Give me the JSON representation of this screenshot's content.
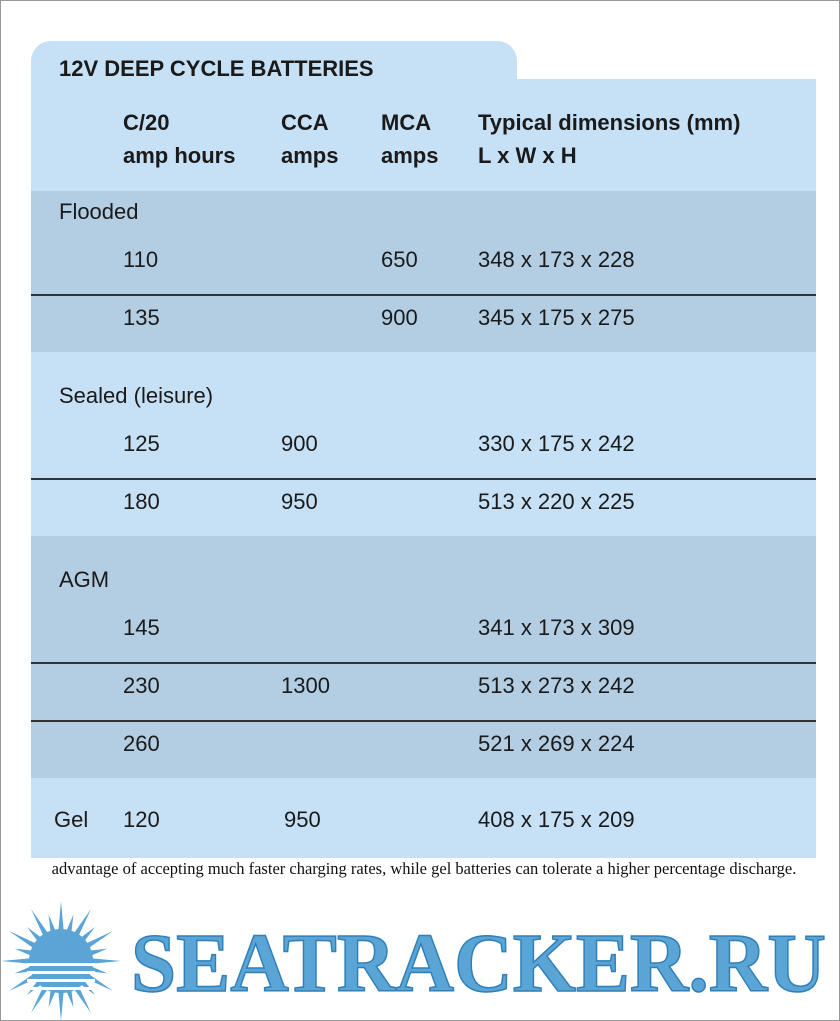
{
  "table": {
    "title": "12V DEEP CYCLE BATTERIES",
    "headers": [
      [
        "C/20",
        "amp hours"
      ],
      [
        "CCA",
        "amps"
      ],
      [
        "MCA",
        "amps"
      ],
      [
        "Typical dimensions (mm)",
        "L x W x H"
      ]
    ],
    "groups": [
      {
        "name": "Flooded",
        "rows": [
          {
            "ah": 110,
            "mca": 650,
            "dims": "348 x 173 x 228"
          },
          {
            "ah": 135,
            "mca": 900,
            "dims": "345 x 175 x 275"
          }
        ]
      },
      {
        "name": "Sealed (leisure)",
        "rows": [
          {
            "ah": 125,
            "cca": 900,
            "dims": "330 x 175 x 242"
          },
          {
            "ah": 180,
            "cca": 950,
            "dims": "513 x 220 x 225"
          }
        ]
      },
      {
        "name": "AGM",
        "rows": [
          {
            "ah": 145,
            "dims": "341 x 173 x 309"
          },
          {
            "ah": 230,
            "cca": 1300,
            "dims": "513 x 273 x 242"
          },
          {
            "ah": 260,
            "dims": "521 x 269 x 224"
          }
        ]
      },
      {
        "name": "Gel",
        "inline": true,
        "rows": [
          {
            "ah": 120,
            "cca": 950,
            "dims": "408 x 175 x 209"
          }
        ]
      }
    ]
  },
  "caption": "Moving up a notch in technology may give the extra capacity without adding batteries. AGM batteries have the added advantage of accepting much faster charging rates, while gel batteries can tolerate a higher percentage discharge.",
  "logo": "SEATRACKER.RU"
}
